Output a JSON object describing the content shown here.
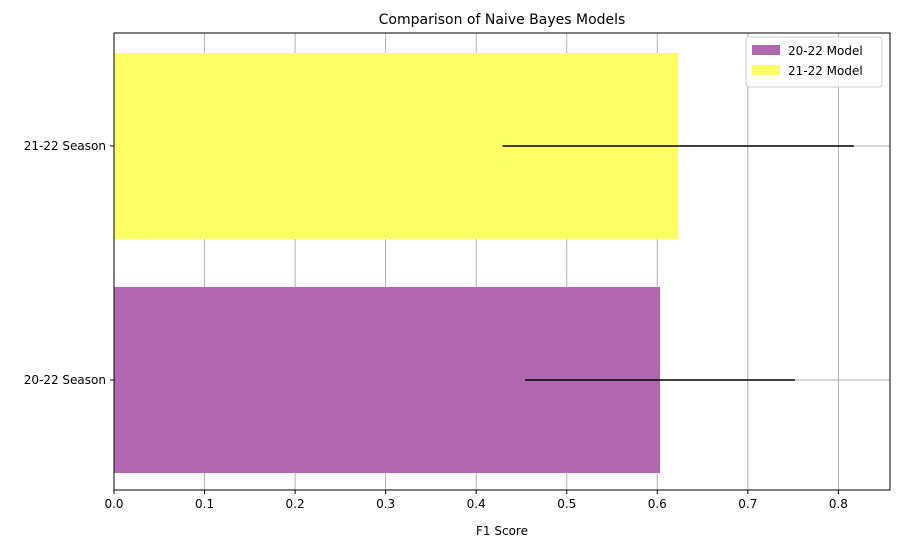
{
  "chart_data": {
    "type": "bar",
    "orientation": "horizontal",
    "title": "Comparison of Naive Bayes Models",
    "xlabel": "F1 Score",
    "ylabel": "",
    "categories": [
      "20-22 Season",
      "21-22 Season"
    ],
    "series": [
      {
        "name": "20-22 Model",
        "color": "#b067b0",
        "values": [
          0.603,
          null
        ],
        "error": [
          0.149,
          null
        ]
      },
      {
        "name": "21-22 Model",
        "color": "#ffff66",
        "values": [
          null,
          0.623
        ],
        "error": [
          null,
          0.194
        ]
      }
    ],
    "xlim": [
      0,
      0.857
    ],
    "xticks": [
      "0.0",
      "0.1",
      "0.2",
      "0.3",
      "0.4",
      "0.5",
      "0.6",
      "0.7",
      "0.8"
    ],
    "grid": true,
    "legend_position": "top-right"
  }
}
